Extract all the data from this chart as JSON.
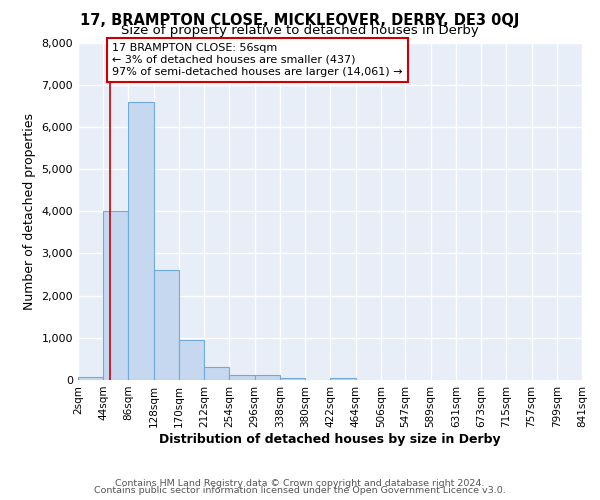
{
  "title": "17, BRAMPTON CLOSE, MICKLEOVER, DERBY, DE3 0QJ",
  "subtitle": "Size of property relative to detached houses in Derby",
  "xlabel": "Distribution of detached houses by size in Derby",
  "ylabel": "Number of detached properties",
  "bin_edges": [
    2,
    44,
    86,
    128,
    170,
    212,
    254,
    296,
    338,
    380,
    422,
    464,
    506,
    547,
    589,
    631,
    673,
    715,
    757,
    799,
    841
  ],
  "bar_heights": [
    65,
    4000,
    6600,
    2600,
    960,
    320,
    130,
    110,
    55,
    0,
    55,
    0,
    0,
    0,
    0,
    0,
    0,
    0,
    0,
    0
  ],
  "bar_color": "#c5d8f0",
  "bar_edge_color": "#6eaadc",
  "property_size": 56,
  "vline_color": "#cc0000",
  "annotation_text": "17 BRAMPTON CLOSE: 56sqm\n← 3% of detached houses are smaller (437)\n97% of semi-detached houses are larger (14,061) →",
  "annotation_box_color": "#ffffff",
  "annotation_box_edge_color": "#cc0000",
  "ylim": [
    0,
    8000
  ],
  "tick_labels": [
    "2sqm",
    "44sqm",
    "86sqm",
    "128sqm",
    "170sqm",
    "212sqm",
    "254sqm",
    "296sqm",
    "338sqm",
    "380sqm",
    "422sqm",
    "464sqm",
    "506sqm",
    "547sqm",
    "589sqm",
    "631sqm",
    "673sqm",
    "715sqm",
    "757sqm",
    "799sqm",
    "841sqm"
  ],
  "footer_line1": "Contains HM Land Registry data © Crown copyright and database right 2024.",
  "footer_line2": "Contains public sector information licensed under the Open Government Licence v3.0.",
  "plot_bg_color": "#e8eef8",
  "fig_bg_color": "#ffffff",
  "grid_color": "#ffffff",
  "title_fontsize": 10.5,
  "subtitle_fontsize": 9.5,
  "axis_label_fontsize": 9,
  "tick_fontsize": 7.5,
  "footer_fontsize": 6.8,
  "annot_fontsize": 8.0
}
